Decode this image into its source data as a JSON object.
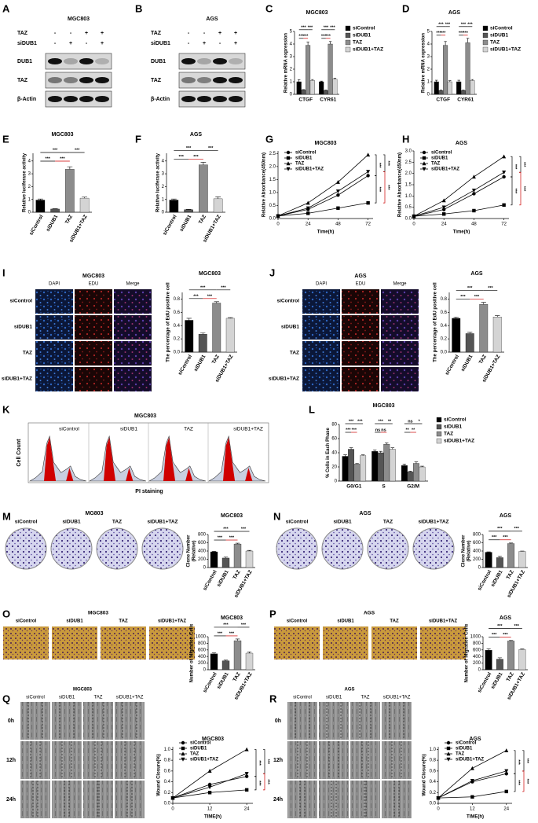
{
  "panel_letters": [
    "A",
    "B",
    "C",
    "D",
    "E",
    "F",
    "G",
    "H",
    "I",
    "J",
    "K",
    "L",
    "M",
    "N",
    "O",
    "P",
    "Q",
    "R"
  ],
  "blots": [
    {
      "title": "MGC803",
      "conditions": [
        {
          "label": "TAZ",
          "signs": [
            "-",
            "-",
            "+",
            "+"
          ]
        },
        {
          "label": "siDUB1",
          "signs": [
            "-",
            "+",
            "-",
            "+"
          ]
        }
      ],
      "bands": [
        "DUB1",
        "TAZ",
        "β-Actin"
      ]
    },
    {
      "title": "AGS",
      "conditions": [
        {
          "label": "TAZ",
          "signs": [
            "-",
            "-",
            "+",
            "+"
          ]
        },
        {
          "label": "siDUB1",
          "signs": [
            "-",
            "+",
            "-",
            "+"
          ]
        }
      ],
      "bands": [
        "DUB1",
        "TAZ",
        "β-Actin"
      ]
    }
  ],
  "edu_images": [
    {
      "title": "MGC803",
      "columns": [
        "DAPI",
        "EDU",
        "Merge"
      ],
      "rows": [
        "siControl",
        "siDUB1",
        "TAZ",
        "siDUB1+TAZ"
      ]
    },
    {
      "title": "AGS",
      "columns": [
        "DAPI",
        "EDU",
        "Merge"
      ],
      "rows": [
        "siControl",
        "siDUB1",
        "TAZ",
        "siDUB1+TAZ"
      ]
    }
  ],
  "flow_cytometry": {
    "title": "MGC803",
    "panels": [
      "siControl",
      "siDUB1",
      "TAZ",
      "siDUB1+TAZ"
    ],
    "y_label": "Cell Count",
    "x_label": "PI staining"
  },
  "colony_images": [
    {
      "title": "MG803",
      "columns": [
        "siControl",
        "siDUB1",
        "TAZ",
        "siDUB1+TAZ"
      ]
    },
    {
      "title": "AGS",
      "columns": [
        "siControl",
        "siDUB1",
        "TAZ",
        "siDUB1+TAZ"
      ]
    }
  ],
  "migration_images": [
    {
      "title": "MGC803",
      "columns": [
        "siControl",
        "siDUB1",
        "TAZ",
        "siDUB1+TAZ"
      ]
    },
    {
      "title": "AGS",
      "columns": [
        "siControl",
        "siDUB1",
        "TAZ",
        "siDUB1+TAZ"
      ]
    }
  ],
  "wound_images": [
    {
      "title": "MGC803",
      "columns": [
        "siControl",
        "siDUB1",
        "TAZ",
        "siDUB1+TAZ"
      ],
      "rows": [
        "0h",
        "12h",
        "24h"
      ]
    },
    {
      "title": "AGS",
      "columns": [
        "siControl",
        "siDUB1",
        "TAZ",
        "siDUB1+TAZ"
      ],
      "rows": [
        "0h",
        "12h",
        "24h"
      ]
    }
  ],
  "chart_data": [
    {
      "type": "bar",
      "title": "MGC803",
      "y_label": "Relative mRNA expression",
      "categories": [
        "CTGF",
        "CYR61"
      ],
      "series": [
        {
          "name": "siControl",
          "color": "#000000",
          "values": [
            1.0,
            1.0
          ],
          "errors": [
            0.15,
            0.05
          ]
        },
        {
          "name": "siDUB1",
          "color": "#555555",
          "values": [
            0.35,
            0.3
          ],
          "errors": [
            0.03,
            0.03
          ]
        },
        {
          "name": "TAZ",
          "color": "#8c8c8c",
          "values": [
            3.9,
            4.0
          ],
          "errors": [
            0.25,
            0.2
          ]
        },
        {
          "name": "siDUB1+TAZ",
          "color": "#d4d4d4",
          "values": [
            1.1,
            1.2
          ],
          "errors": [
            0.08,
            0.08
          ]
        }
      ],
      "ylim": [
        0,
        5
      ],
      "yticks": [
        0,
        1,
        2,
        3,
        4,
        5
      ],
      "annotations": [
        "***",
        "***",
        "***",
        "***",
        "***",
        "***",
        "***",
        "***"
      ]
    },
    {
      "type": "bar",
      "title": "AGS",
      "y_label": "Relative mRNA expression",
      "categories": [
        "CTGF",
        "CYR61"
      ],
      "series": [
        {
          "name": "siControl",
          "color": "#000000",
          "values": [
            1.0,
            1.0
          ],
          "errors": [
            0.12,
            0.12
          ]
        },
        {
          "name": "siDUB1",
          "color": "#555555",
          "values": [
            0.3,
            0.3
          ],
          "errors": [
            0.03,
            0.03
          ]
        },
        {
          "name": "TAZ",
          "color": "#8c8c8c",
          "values": [
            3.9,
            4.1
          ],
          "errors": [
            0.3,
            0.35
          ]
        },
        {
          "name": "siDUB1+TAZ",
          "color": "#d4d4d4",
          "values": [
            1.0,
            1.1
          ],
          "errors": [
            0.08,
            0.08
          ]
        }
      ],
      "ylim": [
        0,
        5
      ],
      "yticks": [
        0,
        1,
        2,
        3,
        4,
        5
      ],
      "annotations": [
        "***",
        "***",
        "***",
        "***",
        "***",
        "***",
        "***",
        "***"
      ]
    },
    {
      "type": "bar",
      "title": "MGC803",
      "y_label": "Relative luciferase activity",
      "categories": [
        "siControl",
        "siDUB1",
        "TAZ",
        "siDUB1+TAZ"
      ],
      "values": [
        0.95,
        0.25,
        3.35,
        1.1
      ],
      "errors": [
        0.08,
        0.03,
        0.2,
        0.08
      ],
      "colors": [
        "#000000",
        "#555555",
        "#8c8c8c",
        "#d4d4d4"
      ],
      "ylim": [
        0,
        4.6
      ],
      "yticks": [
        0,
        1,
        2,
        3,
        4
      ],
      "annotations": [
        "***",
        "***",
        "***",
        "***"
      ]
    },
    {
      "type": "bar",
      "title": "AGS",
      "y_label": "Relative luciferase activity",
      "categories": [
        "siControl",
        "siDUB1",
        "TAZ",
        "siDUB1+TAZ"
      ],
      "values": [
        0.95,
        0.2,
        3.7,
        1.05
      ],
      "errors": [
        0.08,
        0.03,
        0.2,
        0.15
      ],
      "colors": [
        "#000000",
        "#555555",
        "#8c8c8c",
        "#d4d4d4"
      ],
      "ylim": [
        0,
        4.6
      ],
      "yticks": [
        0,
        1,
        2,
        3,
        4
      ],
      "annotations": [
        "***",
        "***",
        "***",
        "***"
      ]
    },
    {
      "type": "line",
      "title": "MGC803",
      "x_label": "Time(h)",
      "y_label": "Relative Absorbance(450nm)",
      "x": [
        0,
        24,
        48,
        72
      ],
      "series": [
        {
          "name": "siControl",
          "color": "#000000",
          "marker": "circle",
          "values": [
            0.1,
            0.35,
            0.9,
            1.65
          ]
        },
        {
          "name": "siDUB1",
          "color": "#000000",
          "marker": "square",
          "values": [
            0.1,
            0.2,
            0.4,
            0.6
          ]
        },
        {
          "name": "TAZ",
          "color": "#000000",
          "marker": "triangle",
          "values": [
            0.1,
            0.6,
            1.4,
            2.45
          ]
        },
        {
          "name": "siDUB1+TAZ",
          "color": "#000000",
          "marker": "triangle-down",
          "values": [
            0.1,
            0.4,
            1.05,
            1.8
          ]
        }
      ],
      "xlim": [
        0,
        76
      ],
      "xticks": [
        0,
        24,
        48,
        72
      ],
      "ylim": [
        0,
        2.6
      ],
      "yticks": [
        {
          "value": 0,
          "label": "0.0"
        },
        0.5,
        {
          "value": 1,
          "label": "1.0"
        },
        1.5,
        {
          "value": 2,
          "label": "2.0"
        },
        2.5
      ],
      "annotations": [
        "***",
        "***",
        "***",
        "***"
      ]
    },
    {
      "type": "line",
      "title": "AGS",
      "x_label": "Time(h)",
      "y_label": "Relative Absorbance(450nm)",
      "x": [
        0,
        24,
        48,
        72
      ],
      "series": [
        {
          "name": "siControl",
          "color": "#000000",
          "marker": "circle",
          "values": [
            0.1,
            0.4,
            1.1,
            1.85
          ]
        },
        {
          "name": "siDUB1",
          "color": "#000000",
          "marker": "square",
          "values": [
            0.1,
            0.2,
            0.35,
            0.6
          ]
        },
        {
          "name": "TAZ",
          "color": "#000000",
          "marker": "triangle",
          "values": [
            0.1,
            0.8,
            1.85,
            2.75
          ]
        },
        {
          "name": "siDUB1+TAZ",
          "color": "#000000",
          "marker": "triangle-down",
          "values": [
            0.1,
            0.5,
            1.25,
            2.05
          ]
        }
      ],
      "xlim": [
        0,
        76
      ],
      "xticks": [
        0,
        24,
        48,
        72
      ],
      "ylim": [
        0,
        3
      ],
      "yticks": [
        {
          "value": 0,
          "label": "0.0"
        },
        0.5,
        {
          "value": 1,
          "label": "1.0"
        },
        1.5,
        {
          "value": 2,
          "label": "2.0"
        },
        2.5,
        {
          "value": 3,
          "label": "3.0"
        }
      ],
      "annotations": [
        "***",
        "***",
        "***",
        "***"
      ]
    },
    {
      "type": "bar",
      "title": "MGC803",
      "y_label": "The percentage of EdU positive cell",
      "categories": [
        "siControl",
        "siDUB1",
        "TAZ",
        "siDUB1+TAZ"
      ],
      "values": [
        0.48,
        0.27,
        0.74,
        0.51
      ],
      "errors": [
        0.03,
        0.02,
        0.02,
        0.01
      ],
      "colors": [
        "#000000",
        "#555555",
        "#8c8c8c",
        "#d4d4d4"
      ],
      "ylim": [
        0,
        0.9
      ],
      "yticks": [
        {
          "value": 0,
          "label": "0.0"
        },
        0.2,
        0.4,
        0.6,
        0.8
      ],
      "annotations": [
        "***",
        "***",
        "***",
        "***"
      ]
    },
    {
      "type": "bar",
      "title": "AGS",
      "y_label": "The percentage of EdU positive cell",
      "categories": [
        "siControl",
        "siDUB1",
        "TAZ",
        "siDUB1+TAZ"
      ],
      "values": [
        0.51,
        0.28,
        0.72,
        0.53
      ],
      "errors": [
        0.02,
        0.02,
        0.03,
        0.02
      ],
      "colors": [
        "#000000",
        "#555555",
        "#8c8c8c",
        "#d4d4d4"
      ],
      "ylim": [
        0,
        0.9
      ],
      "yticks": [
        {
          "value": 0,
          "label": "0.0"
        },
        0.2,
        0.4,
        0.6,
        0.8
      ],
      "annotations": [
        "***",
        "***",
        "***",
        "***"
      ]
    },
    {
      "type": "bar",
      "title": "MGC803",
      "y_label": "% Cells in Each Phase",
      "categories": [
        "G0/G1",
        "S",
        "G2/M"
      ],
      "series": [
        {
          "name": "siControl",
          "color": "#000000",
          "values": [
            35,
            42,
            22
          ],
          "errors": [
            2,
            2,
            2
          ]
        },
        {
          "name": "siDUB1",
          "color": "#555555",
          "values": [
            45,
            40,
            13
          ],
          "errors": [
            2,
            2,
            1
          ]
        },
        {
          "name": "TAZ",
          "color": "#8c8c8c",
          "values": [
            24,
            52,
            25
          ],
          "errors": [
            1,
            2,
            2
          ]
        },
        {
          "name": "siDUB1+TAZ",
          "color": "#d4d4d4",
          "values": [
            36,
            45,
            20
          ],
          "errors": [
            1,
            2,
            1
          ]
        }
      ],
      "ylim": [
        0,
        80
      ],
      "yticks": [
        0,
        20,
        40,
        60,
        80
      ],
      "annotations": [
        "***",
        "***",
        "***",
        "***",
        "ns",
        "ns",
        "***",
        "**",
        "**",
        "**",
        "ns",
        "*"
      ]
    },
    {
      "type": "bar",
      "title": "MGC803",
      "y_label": [
        "Clone Number",
        "(Relative)"
      ],
      "categories": [
        "siControl",
        "siDUB1",
        "TAZ",
        "siDUB1+TAZ"
      ],
      "values": [
        380,
        230,
        570,
        400
      ],
      "errors": [
        15,
        25,
        20,
        15
      ],
      "colors": [
        "#000000",
        "#555555",
        "#8c8c8c",
        "#d4d4d4"
      ],
      "ylim": [
        0,
        800
      ],
      "yticks": [
        0,
        200,
        400,
        600,
        800
      ],
      "annotations": [
        "***",
        "***",
        "***",
        "***"
      ]
    },
    {
      "type": "bar",
      "title": "AGS",
      "y_label": [
        "Clone Number",
        "(Relative)"
      ],
      "categories": [
        "siControl",
        "siDUB1",
        "TAZ",
        "siDUB1+TAZ"
      ],
      "values": [
        370,
        240,
        580,
        390
      ],
      "errors": [
        10,
        30,
        15,
        10
      ],
      "colors": [
        "#000000",
        "#555555",
        "#8c8c8c",
        "#d4d4d4"
      ],
      "ylim": [
        0,
        800
      ],
      "yticks": [
        0,
        200,
        400,
        600,
        800
      ],
      "annotations": [
        "***",
        "***",
        "***",
        "***"
      ]
    },
    {
      "type": "bar",
      "title": "MGC803",
      "y_label": "Number of Migration Cells",
      "categories": [
        "siControl",
        "siDUB1",
        "TAZ",
        "siDUB1+TAZ"
      ],
      "values": [
        480,
        270,
        880,
        500
      ],
      "errors": [
        30,
        20,
        50,
        40
      ],
      "colors": [
        "#000000",
        "#555555",
        "#8c8c8c",
        "#d4d4d4"
      ],
      "ylim": [
        0,
        1000
      ],
      "yticks": [
        0,
        200,
        400,
        600,
        800,
        1000
      ],
      "annotations": [
        "***",
        "***",
        "***",
        "***"
      ]
    },
    {
      "type": "bar",
      "title": "AGS",
      "y_label": "Number of Migration Cells",
      "categories": [
        "siControl",
        "siDUB1",
        "TAZ",
        "siDUB1+TAZ"
      ],
      "values": [
        590,
        320,
        870,
        610
      ],
      "errors": [
        40,
        40,
        20,
        20
      ],
      "colors": [
        "#000000",
        "#555555",
        "#8c8c8c",
        "#d4d4d4"
      ],
      "ylim": [
        0,
        1000
      ],
      "yticks": [
        0,
        200,
        400,
        600,
        800,
        1000
      ],
      "annotations": [
        "***",
        "***",
        "***",
        "***"
      ]
    },
    {
      "type": "line",
      "title": "MGC803",
      "x_label": "TIME(h)",
      "y_label": "Wound Closure(%)",
      "x": [
        0,
        12,
        24
      ],
      "series": [
        {
          "name": "siControl",
          "color": "#000000",
          "marker": "circle",
          "values": [
            0.1,
            0.35,
            0.5
          ]
        },
        {
          "name": "siDUB1",
          "color": "#000000",
          "marker": "square",
          "values": [
            0.1,
            0.2,
            0.25
          ]
        },
        {
          "name": "TAZ",
          "color": "#000000",
          "marker": "triangle",
          "values": [
            0.1,
            0.6,
            1.0
          ]
        },
        {
          "name": "siDUB1+TAZ",
          "color": "#000000",
          "marker": "triangle-down",
          "values": [
            0.1,
            0.3,
            0.55
          ]
        }
      ],
      "xlim": [
        0,
        26
      ],
      "xticks": [
        0,
        12,
        24
      ],
      "ylim": [
        0,
        1.05
      ],
      "yticks": [
        {
          "value": 0,
          "label": "0.0"
        },
        0.2,
        0.4,
        0.6,
        0.8,
        {
          "value": 1,
          "label": "1.0"
        }
      ],
      "annotations": [
        "***",
        "***",
        "***",
        "***"
      ]
    },
    {
      "type": "line",
      "title": "AGS",
      "x_label": "TIME(h)",
      "y_label": "Wound Closure(%)",
      "x": [
        0,
        12,
        24
      ],
      "series": [
        {
          "name": "siControl",
          "color": "#000000",
          "marker": "circle",
          "values": [
            0.1,
            0.4,
            0.55
          ]
        },
        {
          "name": "siDUB1",
          "color": "#000000",
          "marker": "square",
          "values": [
            0.1,
            0.12,
            0.22
          ]
        },
        {
          "name": "TAZ",
          "color": "#000000",
          "marker": "triangle",
          "values": [
            0.1,
            0.65,
            0.98
          ]
        },
        {
          "name": "siDUB1+TAZ",
          "color": "#000000",
          "marker": "triangle-down",
          "values": [
            0.1,
            0.42,
            0.6
          ]
        }
      ],
      "xlim": [
        0,
        26
      ],
      "xticks": [
        0,
        12,
        24
      ],
      "ylim": [
        0,
        1.05
      ],
      "yticks": [
        {
          "value": 0,
          "label": "0.0"
        },
        0.2,
        0.4,
        0.6,
        0.8,
        {
          "value": 1,
          "label": "1.0"
        }
      ],
      "annotations": [
        "***",
        "***",
        "***",
        "***"
      ]
    }
  ]
}
